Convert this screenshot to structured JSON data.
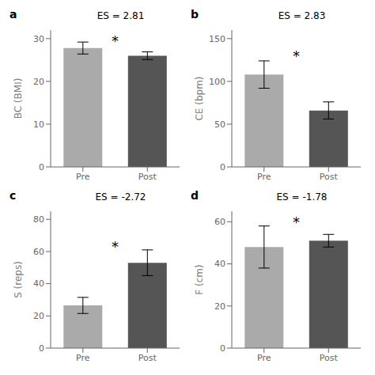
{
  "chart_data": [
    {
      "type": "bar",
      "title": "a",
      "ylabel": "BC (BMI)",
      "categories": [
        "Pre",
        "Post"
      ],
      "values": [
        27.8,
        26.0
      ],
      "errors": [
        1.4,
        0.9
      ],
      "colors": [
        "#aaaaaa",
        "#555555"
      ],
      "ylim": [
        0,
        32
      ],
      "yticks": [
        0,
        10,
        20,
        30
      ],
      "annotations": [
        {
          "text": "ES = 2.81"
        },
        {
          "text": "*",
          "y": 29.5
        }
      ]
    },
    {
      "type": "bar",
      "title": "b",
      "ylabel": "CE (bpm)",
      "categories": [
        "Pre",
        "Post"
      ],
      "values": [
        108,
        66
      ],
      "errors": [
        16,
        10
      ],
      "colors": [
        "#aaaaaa",
        "#555555"
      ],
      "ylim": [
        0,
        160
      ],
      "yticks": [
        0,
        50,
        100,
        150
      ],
      "annotations": [
        {
          "text": "ES = 2.83"
        },
        {
          "text": "*",
          "y": 130
        }
      ]
    },
    {
      "type": "bar",
      "title": "c",
      "ylabel": "S (reps)",
      "categories": [
        "Pre",
        "Post"
      ],
      "values": [
        26.5,
        53
      ],
      "errors": [
        5,
        8
      ],
      "colors": [
        "#aaaaaa",
        "#555555"
      ],
      "ylim": [
        0,
        85
      ],
      "yticks": [
        0,
        20,
        40,
        60,
        80
      ],
      "annotations": [
        {
          "text": "ES = -2.72"
        },
        {
          "text": "*",
          "y": 63
        }
      ]
    },
    {
      "type": "bar",
      "title": "d",
      "ylabel": "F (cm)",
      "categories": [
        "Pre",
        "Post"
      ],
      "values": [
        48,
        51
      ],
      "errors": [
        10,
        3
      ],
      "colors": [
        "#aaaaaa",
        "#555555"
      ],
      "ylim": [
        0,
        65
      ],
      "yticks": [
        0,
        20,
        40,
        60
      ],
      "annotations": [
        {
          "text": "ES = -1.78"
        },
        {
          "text": "*",
          "y": 60
        }
      ]
    }
  ]
}
